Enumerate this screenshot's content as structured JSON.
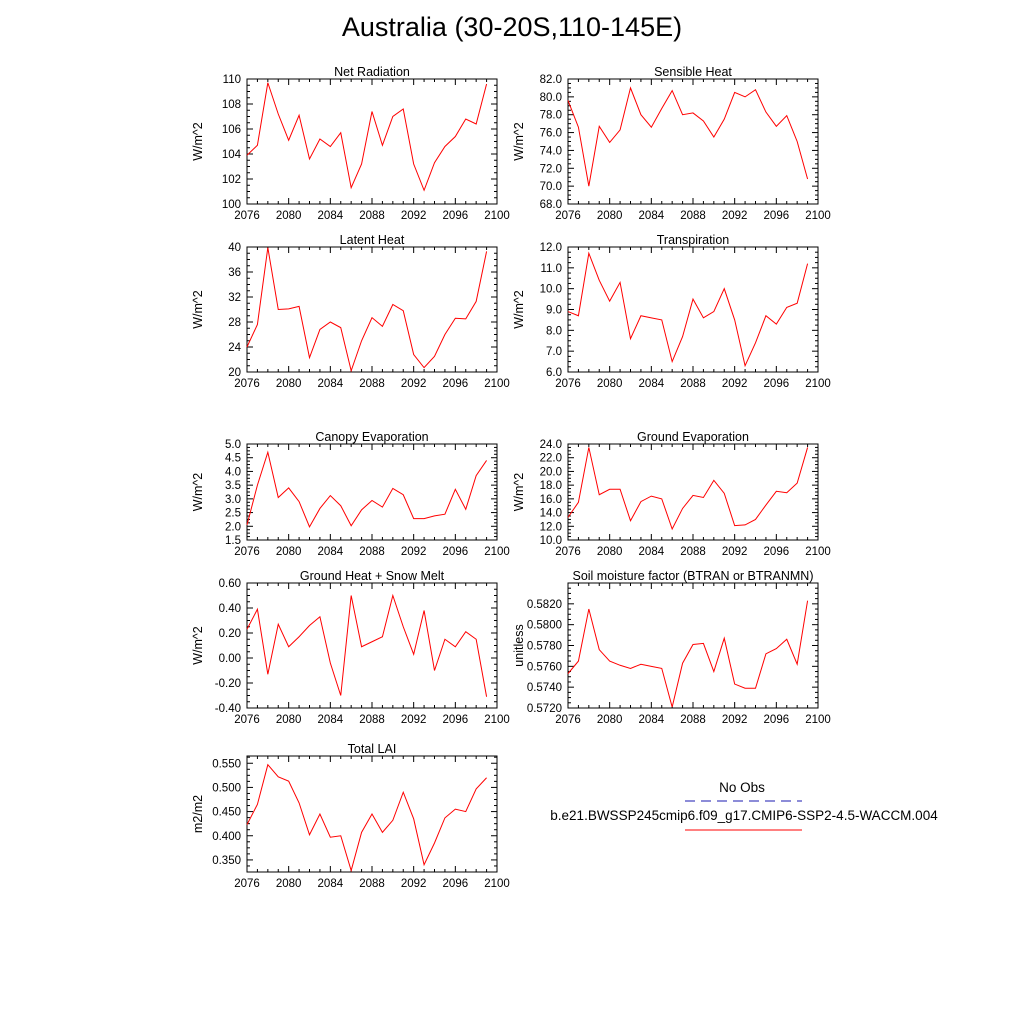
{
  "title": "Australia (30-20S,110-145E)",
  "colors": {
    "model_line": "#ff0000",
    "obs_line": "#1a1ab0",
    "axis": "#000000"
  },
  "legend": {
    "obs_label": "No Obs",
    "model_label": "b.e21.BWSSP245cmip6.f09_g17.CMIP6-SSP2-4.5-WACCM.004"
  },
  "chart_data": [
    {
      "type": "line",
      "title": "Net Radiation",
      "ylabel": "W/m^2",
      "xlim": [
        2076,
        2100
      ],
      "ylim": [
        100,
        110
      ],
      "xticks": [
        "2076",
        "2080",
        "2084",
        "2088",
        "2092",
        "2096",
        "2100"
      ],
      "yticks": [
        "100",
        "102",
        "104",
        "106",
        "108",
        "110"
      ],
      "x": [
        2076,
        2077,
        2078,
        2079,
        2080,
        2081,
        2082,
        2083,
        2084,
        2085,
        2086,
        2087,
        2088,
        2089,
        2090,
        2091,
        2092,
        2093,
        2094,
        2095,
        2096,
        2097,
        2098,
        2099
      ],
      "values": [
        103.9,
        104.7,
        109.7,
        107.2,
        105.1,
        107.1,
        103.6,
        105.2,
        104.6,
        105.7,
        101.3,
        103.2,
        107.4,
        104.7,
        107.0,
        107.6,
        103.2,
        101.1,
        103.3,
        104.6,
        105.4,
        106.8,
        106.4,
        109.6
      ]
    },
    {
      "type": "line",
      "title": "Sensible Heat",
      "ylabel": "W/m^2",
      "xlim": [
        2076,
        2100
      ],
      "ylim": [
        68,
        82
      ],
      "xticks": [
        "2076",
        "2080",
        "2084",
        "2088",
        "2092",
        "2096",
        "2100"
      ],
      "yticks": [
        "68.0",
        "70.0",
        "72.0",
        "74.0",
        "76.0",
        "78.0",
        "80.0",
        "82.0"
      ],
      "x": [
        2076,
        2077,
        2078,
        2079,
        2080,
        2081,
        2082,
        2083,
        2084,
        2085,
        2086,
        2087,
        2088,
        2089,
        2090,
        2091,
        2092,
        2093,
        2094,
        2095,
        2096,
        2097,
        2098,
        2099
      ],
      "values": [
        79.6,
        76.6,
        70.0,
        76.7,
        74.9,
        76.3,
        81.0,
        78.0,
        76.6,
        78.7,
        80.7,
        78.0,
        78.2,
        77.3,
        75.5,
        77.5,
        80.5,
        80.0,
        80.8,
        78.3,
        76.7,
        77.9,
        75.0,
        70.8
      ]
    },
    {
      "type": "line",
      "title": "Latent Heat",
      "ylabel": "W/m^2",
      "xlim": [
        2076,
        2100
      ],
      "ylim": [
        20,
        40
      ],
      "xticks": [
        "2076",
        "2080",
        "2084",
        "2088",
        "2092",
        "2096",
        "2100"
      ],
      "yticks": [
        "20",
        "24",
        "28",
        "32",
        "36",
        "40"
      ],
      "x": [
        2076,
        2077,
        2078,
        2079,
        2080,
        2081,
        2082,
        2083,
        2084,
        2085,
        2086,
        2087,
        2088,
        2089,
        2090,
        2091,
        2092,
        2093,
        2094,
        2095,
        2096,
        2097,
        2098,
        2099
      ],
      "values": [
        24.0,
        27.6,
        39.9,
        30.0,
        30.1,
        30.5,
        22.3,
        26.8,
        28.0,
        27.1,
        20.2,
        25.0,
        28.7,
        27.3,
        30.8,
        29.8,
        22.8,
        20.7,
        22.5,
        26.0,
        28.6,
        28.5,
        31.3,
        39.3
      ]
    },
    {
      "type": "line",
      "title": "Transpiration",
      "ylabel": "W/m^2",
      "xlim": [
        2076,
        2100
      ],
      "ylim": [
        6,
        12
      ],
      "xticks": [
        "2076",
        "2080",
        "2084",
        "2088",
        "2092",
        "2096",
        "2100"
      ],
      "yticks": [
        "6.0",
        "7.0",
        "8.0",
        "9.0",
        "10.0",
        "11.0",
        "12.0"
      ],
      "x": [
        2076,
        2077,
        2078,
        2079,
        2080,
        2081,
        2082,
        2083,
        2084,
        2085,
        2086,
        2087,
        2088,
        2089,
        2090,
        2091,
        2092,
        2093,
        2094,
        2095,
        2096,
        2097,
        2098,
        2099
      ],
      "values": [
        8.9,
        8.7,
        11.7,
        10.4,
        9.4,
        10.3,
        7.6,
        8.7,
        8.6,
        8.5,
        6.5,
        7.7,
        9.5,
        8.6,
        8.9,
        10.0,
        8.5,
        6.3,
        7.4,
        8.7,
        8.3,
        9.1,
        9.3,
        11.2
      ]
    },
    {
      "type": "line",
      "title": "Canopy Evaporation",
      "ylabel": "W/m^2",
      "xlim": [
        2076,
        2100
      ],
      "ylim": [
        1.5,
        5.0
      ],
      "xticks": [
        "2076",
        "2080",
        "2084",
        "2088",
        "2092",
        "2096",
        "2100"
      ],
      "yticks": [
        "1.5",
        "2.0",
        "2.5",
        "3.0",
        "3.5",
        "4.0",
        "4.5",
        "5.0"
      ],
      "x": [
        2076,
        2077,
        2078,
        2079,
        2080,
        2081,
        2082,
        2083,
        2084,
        2085,
        2086,
        2087,
        2088,
        2089,
        2090,
        2091,
        2092,
        2093,
        2094,
        2095,
        2096,
        2097,
        2098,
        2099
      ],
      "values": [
        2.05,
        3.5,
        4.7,
        3.05,
        3.4,
        2.9,
        1.98,
        2.65,
        3.12,
        2.75,
        2.02,
        2.6,
        2.94,
        2.7,
        3.38,
        3.15,
        2.28,
        2.28,
        2.38,
        2.44,
        3.35,
        2.62,
        3.85,
        4.4
      ]
    },
    {
      "type": "line",
      "title": "Ground Evaporation",
      "ylabel": "W/m^2",
      "xlim": [
        2076,
        2100
      ],
      "ylim": [
        10,
        24
      ],
      "xticks": [
        "2076",
        "2080",
        "2084",
        "2088",
        "2092",
        "2096",
        "2100"
      ],
      "yticks": [
        "10.0",
        "12.0",
        "14.0",
        "16.0",
        "18.0",
        "20.0",
        "22.0",
        "24.0"
      ],
      "x": [
        2076,
        2077,
        2078,
        2079,
        2080,
        2081,
        2082,
        2083,
        2084,
        2085,
        2086,
        2087,
        2088,
        2089,
        2090,
        2091,
        2092,
        2093,
        2094,
        2095,
        2096,
        2097,
        2098,
        2099
      ],
      "values": [
        13.3,
        15.5,
        23.5,
        16.6,
        17.4,
        17.4,
        12.8,
        15.6,
        16.4,
        16.0,
        11.6,
        14.6,
        16.5,
        16.2,
        18.7,
        16.8,
        12.1,
        12.2,
        13.0,
        15.1,
        17.1,
        16.9,
        18.3,
        23.5
      ]
    },
    {
      "type": "line",
      "title": "Ground Heat + Snow Melt",
      "ylabel": "W/m^2",
      "xlim": [
        2076,
        2100
      ],
      "ylim": [
        -0.4,
        0.6
      ],
      "xticks": [
        "2076",
        "2080",
        "2084",
        "2088",
        "2092",
        "2096",
        "2100"
      ],
      "yticks": [
        "-0.40",
        "-0.20",
        "0.00",
        "0.20",
        "0.40",
        "0.60"
      ],
      "x": [
        2076,
        2077,
        2078,
        2079,
        2080,
        2081,
        2082,
        2083,
        2084,
        2085,
        2086,
        2087,
        2088,
        2089,
        2090,
        2091,
        2092,
        2093,
        2094,
        2095,
        2096,
        2097,
        2098,
        2099
      ],
      "values": [
        0.23,
        0.39,
        -0.13,
        0.27,
        0.09,
        0.17,
        0.26,
        0.33,
        -0.04,
        -0.3,
        0.5,
        0.09,
        0.13,
        0.17,
        0.5,
        0.25,
        0.03,
        0.38,
        -0.1,
        0.15,
        0.09,
        0.21,
        0.15,
        -0.31
      ]
    },
    {
      "type": "line",
      "title": "Soil moisture factor (BTRAN or BTRANMN)",
      "ylabel": "unitless",
      "xlim": [
        2076,
        2100
      ],
      "ylim": [
        0.572,
        0.584
      ],
      "xticks": [
        "2076",
        "2080",
        "2084",
        "2088",
        "2092",
        "2096",
        "2100"
      ],
      "yticks": [
        "0.5720",
        "0.5740",
        "0.5760",
        "0.5780",
        "0.5800",
        "0.5820"
      ],
      "x": [
        2076,
        2077,
        2078,
        2079,
        2080,
        2081,
        2082,
        2083,
        2084,
        2085,
        2086,
        2087,
        2088,
        2089,
        2090,
        2091,
        2092,
        2093,
        2094,
        2095,
        2096,
        2097,
        2098,
        2099
      ],
      "values": [
        0.5753,
        0.5765,
        0.5815,
        0.5776,
        0.5765,
        0.5761,
        0.5758,
        0.5762,
        0.576,
        0.5758,
        0.5721,
        0.5763,
        0.5781,
        0.5782,
        0.5755,
        0.5787,
        0.5743,
        0.5739,
        0.5739,
        0.5772,
        0.5777,
        0.5786,
        0.5762,
        0.5823
      ]
    },
    {
      "type": "line",
      "title": "Total LAI",
      "ylabel": "m2/m2",
      "xlim": [
        2076,
        2100
      ],
      "ylim": [
        0.325,
        0.565
      ],
      "xticks": [
        "2076",
        "2080",
        "2084",
        "2088",
        "2092",
        "2096",
        "2100"
      ],
      "yticks": [
        "0.350",
        "0.400",
        "0.450",
        "0.500",
        "0.550"
      ],
      "x": [
        2076,
        2077,
        2078,
        2079,
        2080,
        2081,
        2082,
        2083,
        2084,
        2085,
        2086,
        2087,
        2088,
        2089,
        2090,
        2091,
        2092,
        2093,
        2094,
        2095,
        2096,
        2097,
        2098,
        2099
      ],
      "values": [
        0.423,
        0.465,
        0.547,
        0.522,
        0.513,
        0.468,
        0.402,
        0.445,
        0.397,
        0.4,
        0.328,
        0.407,
        0.445,
        0.407,
        0.432,
        0.49,
        0.435,
        0.34,
        0.385,
        0.437,
        0.455,
        0.45,
        0.497,
        0.52
      ]
    }
  ]
}
